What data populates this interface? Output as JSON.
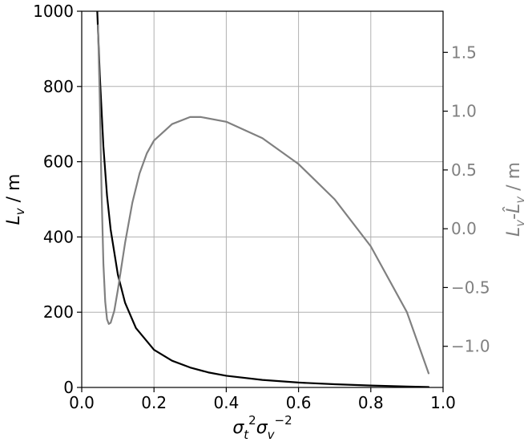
{
  "chart_data": {
    "type": "line",
    "grid": true,
    "xlabel": "σ_t^2 σ_v^-2",
    "ylabel_left": "L_v / m",
    "ylabel_right": "L_v-L̂_v / m",
    "xlim": [
      0.0,
      1.0
    ],
    "ylim_left": [
      0,
      1000
    ],
    "ylim_right": [
      -1.35,
      1.85
    ],
    "x_ticks": [
      {
        "value": 0.0,
        "label": "0.0"
      },
      {
        "value": 0.2,
        "label": "0.2"
      },
      {
        "value": 0.4,
        "label": "0.4"
      },
      {
        "value": 0.6,
        "label": "0.6"
      },
      {
        "value": 0.8,
        "label": "0.8"
      },
      {
        "value": 1.0,
        "label": "1.0"
      }
    ],
    "y_ticks_left": [
      {
        "value": 0,
        "label": "0"
      },
      {
        "value": 200,
        "label": "200"
      },
      {
        "value": 400,
        "label": "400"
      },
      {
        "value": 600,
        "label": "600"
      },
      {
        "value": 800,
        "label": "800"
      },
      {
        "value": 1000,
        "label": "1000"
      }
    ],
    "y_ticks_right": [
      {
        "value": -1.0,
        "label": "−1.0"
      },
      {
        "value": -0.5,
        "label": "−0.5"
      },
      {
        "value": 0.0,
        "label": "0.0"
      },
      {
        "value": 0.5,
        "label": "0.5"
      },
      {
        "value": 1.0,
        "label": "1.0"
      },
      {
        "value": 1.5,
        "label": "1.5"
      }
    ],
    "series": [
      {
        "axis": "left",
        "color": "#000000",
        "points": [
          [
            0.043,
            1000
          ],
          [
            0.05,
            830
          ],
          [
            0.06,
            640
          ],
          [
            0.07,
            510
          ],
          [
            0.08,
            420
          ],
          [
            0.1,
            300
          ],
          [
            0.12,
            225
          ],
          [
            0.15,
            158
          ],
          [
            0.2,
            100
          ],
          [
            0.25,
            71
          ],
          [
            0.3,
            53
          ],
          [
            0.35,
            40
          ],
          [
            0.4,
            31
          ],
          [
            0.5,
            20
          ],
          [
            0.6,
            13
          ],
          [
            0.7,
            8.5
          ],
          [
            0.8,
            5
          ],
          [
            0.9,
            2.5
          ],
          [
            0.96,
            1
          ]
        ]
      },
      {
        "axis": "right",
        "color": "#808080",
        "points": [
          [
            0.045,
            1.73
          ],
          [
            0.05,
            1.1
          ],
          [
            0.055,
            0.3
          ],
          [
            0.06,
            -0.3
          ],
          [
            0.065,
            -0.62
          ],
          [
            0.07,
            -0.77
          ],
          [
            0.075,
            -0.81
          ],
          [
            0.08,
            -0.8
          ],
          [
            0.09,
            -0.7
          ],
          [
            0.1,
            -0.52
          ],
          [
            0.12,
            -0.12
          ],
          [
            0.14,
            0.22
          ],
          [
            0.16,
            0.47
          ],
          [
            0.18,
            0.64
          ],
          [
            0.2,
            0.75
          ],
          [
            0.25,
            0.89
          ],
          [
            0.3,
            0.95
          ],
          [
            0.33,
            0.95
          ],
          [
            0.4,
            0.91
          ],
          [
            0.5,
            0.77
          ],
          [
            0.6,
            0.55
          ],
          [
            0.7,
            0.25
          ],
          [
            0.8,
            -0.15
          ],
          [
            0.9,
            -0.71
          ],
          [
            0.96,
            -1.23
          ]
        ]
      }
    ]
  }
}
